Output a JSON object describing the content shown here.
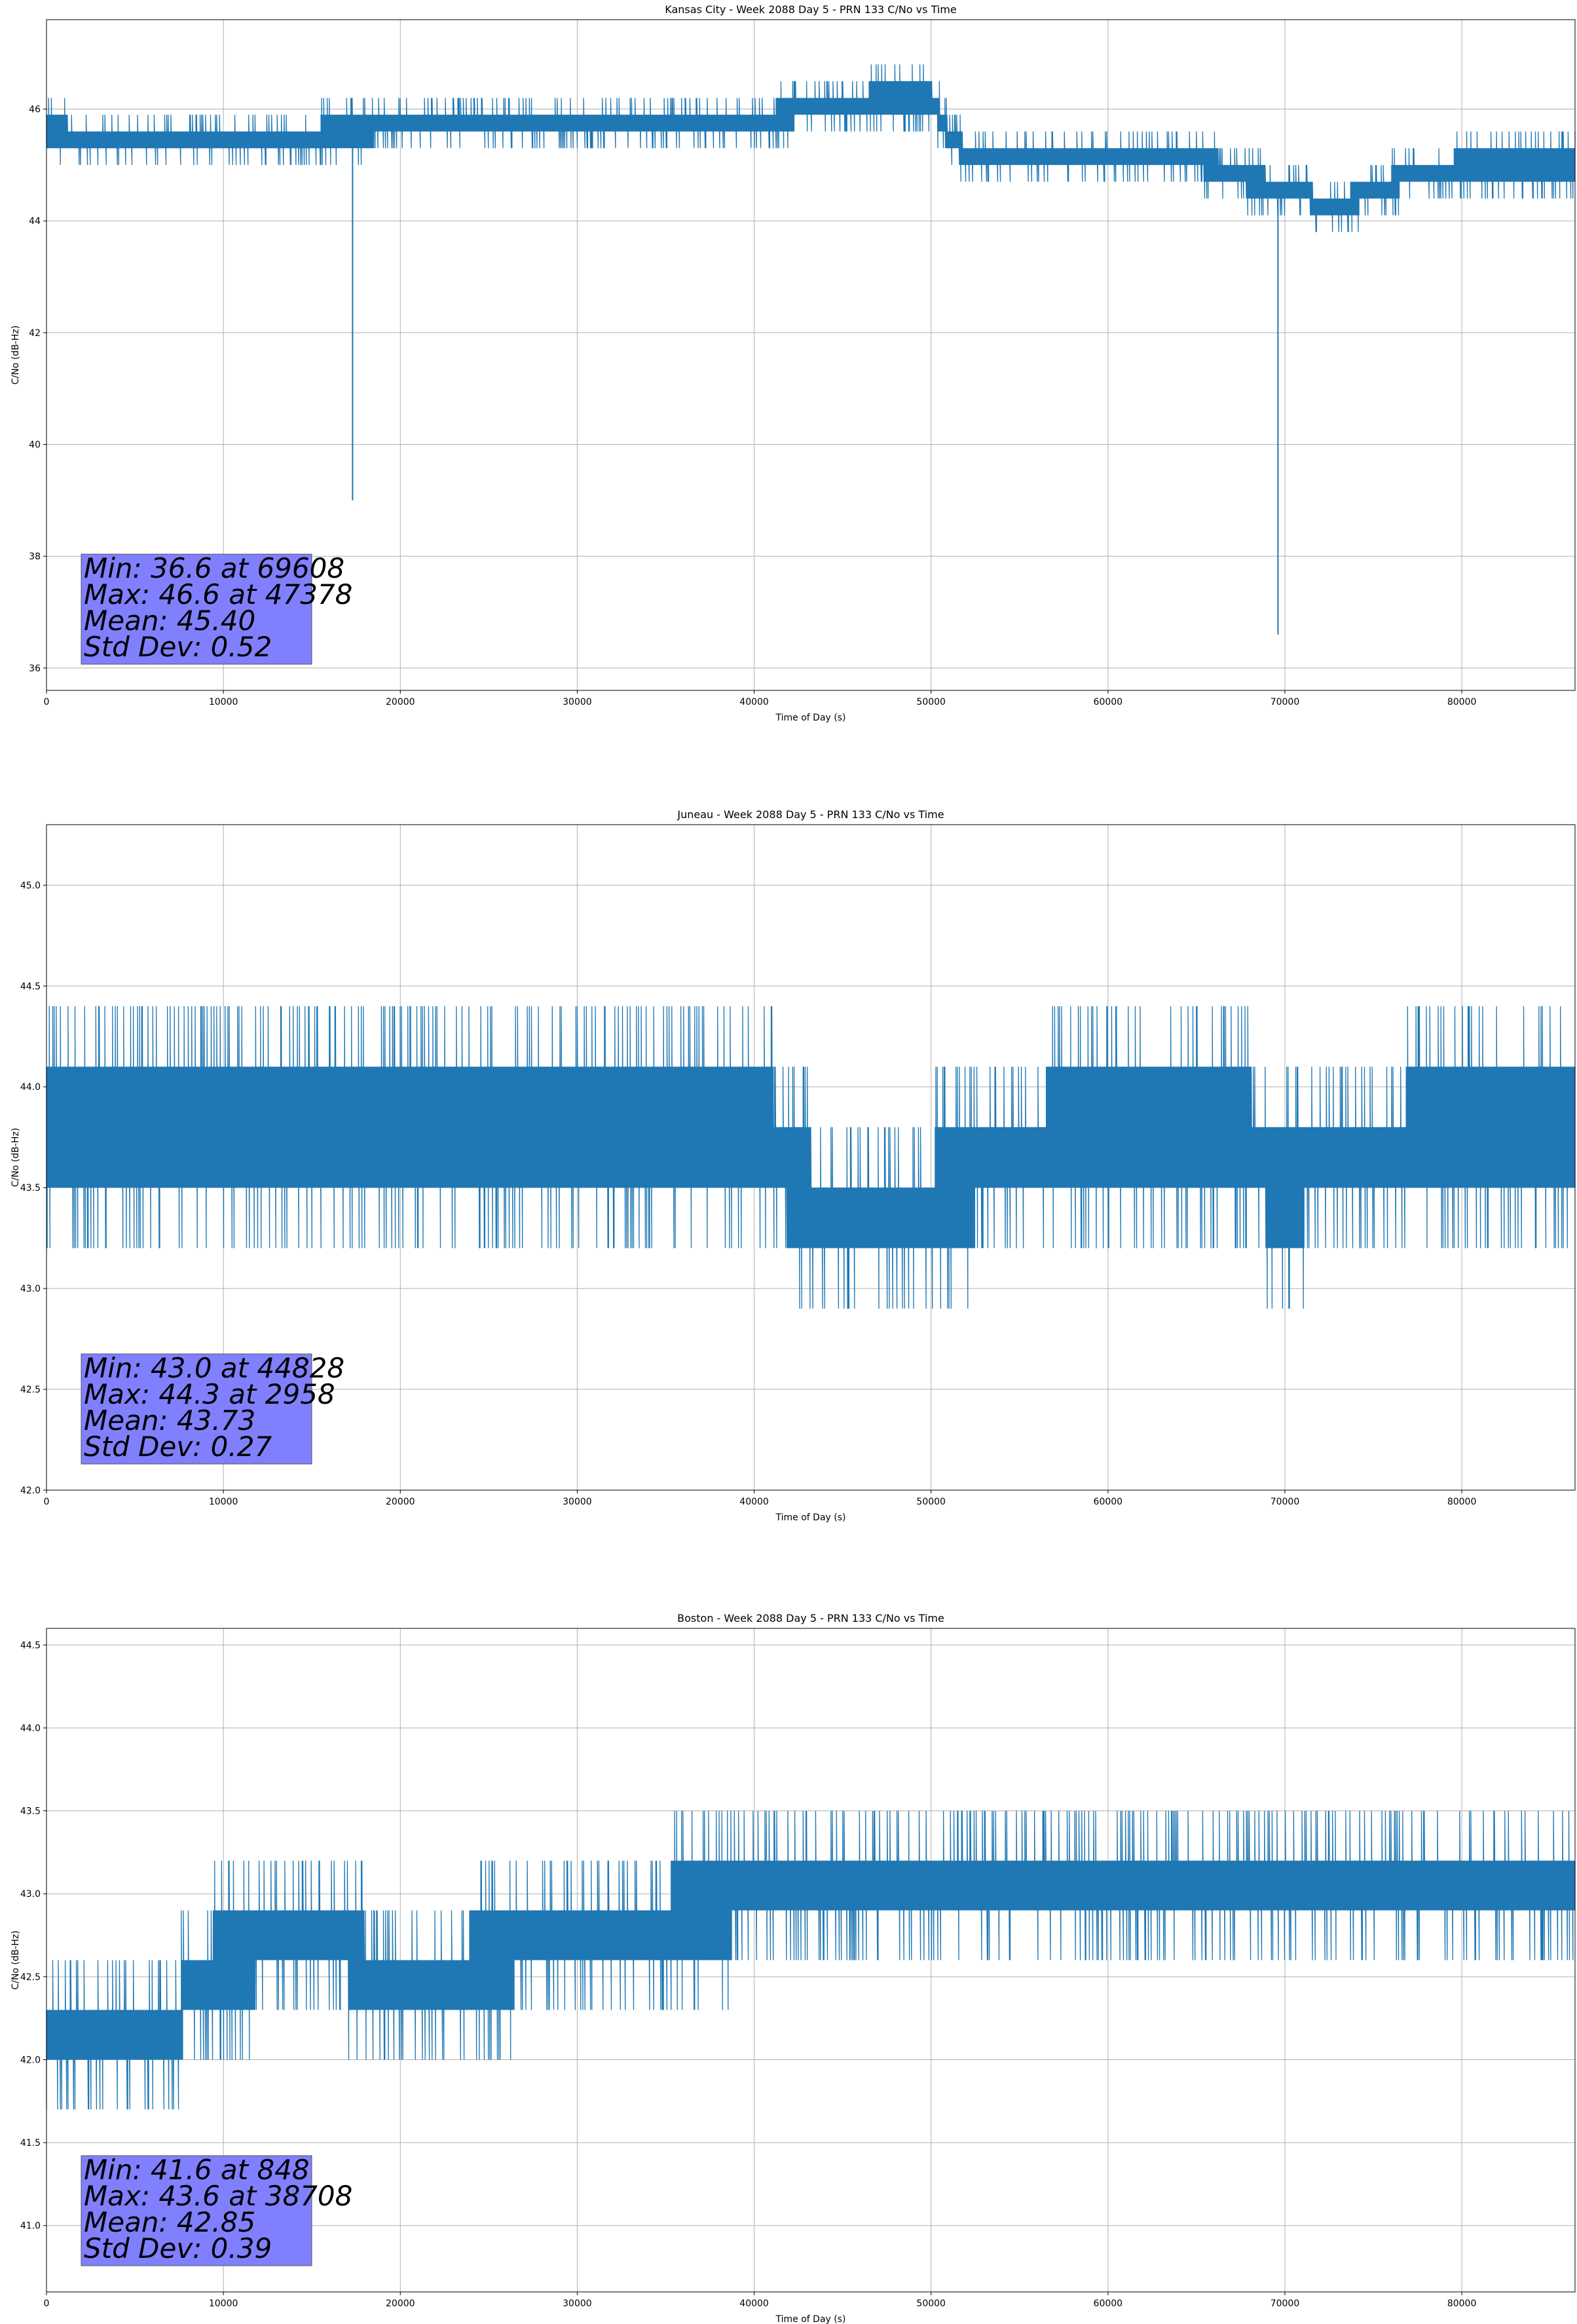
{
  "colors": {
    "line": "#1f77b4",
    "grid": "#b0b0b0",
    "stats_box": "#8080ff",
    "axes": "#000000"
  },
  "chart_data": [
    {
      "type": "line",
      "title": "Kansas City - Week 2088 Day 5 - PRN 133 C/No vs Time",
      "xlabel": "Time of Day (s)",
      "ylabel": "C/No (dB-Hz)",
      "xlim": [
        0,
        86400
      ],
      "ylim": [
        35.6,
        47.6
      ],
      "grid": true,
      "xticks": [
        0,
        10000,
        20000,
        30000,
        40000,
        50000,
        60000,
        70000,
        80000
      ],
      "xtick_labels": [
        "0",
        "10000",
        "20000",
        "30000",
        "40000",
        "50000",
        "60000",
        "70000",
        "80000"
      ],
      "yticks": [
        36,
        38,
        40,
        42,
        44,
        46
      ],
      "ytick_labels": [
        "36",
        "38",
        "40",
        "42",
        "44",
        "46"
      ],
      "series": [
        {
          "step": 0.3,
          "segments": [
            [
              0,
              45.6
            ],
            [
              8000,
              45.4
            ],
            [
              12000,
              45.5
            ],
            [
              22000,
              45.7
            ],
            [
              26000,
              45.8
            ],
            [
              40000,
              45.8
            ],
            [
              47000,
              46.2
            ],
            [
              50000,
              46.2
            ],
            [
              51000,
              45.5
            ],
            [
              52000,
              45.2
            ],
            [
              62000,
              45.2
            ],
            [
              66000,
              45.0
            ],
            [
              68000,
              44.7
            ],
            [
              71000,
              44.6
            ],
            [
              72000,
              44.2
            ],
            [
              74000,
              44.4
            ],
            [
              77000,
              44.8
            ],
            [
              80000,
              45.0
            ],
            [
              86400,
              45.0
            ]
          ],
          "spikes": [
            [
              17300,
              39.0
            ],
            [
              69608,
              36.6
            ]
          ]
        }
      ],
      "stats": [
        "Min: 36.6 at 69608",
        "Max: 46.6 at 47378",
        "Mean: 45.40",
        "Std Dev: 0.52"
      ]
    },
    {
      "type": "line",
      "title": "Juneau - Week 2088 Day 5 - PRN 133 C/No vs Time",
      "xlabel": "Time of Day (s)",
      "ylabel": "C/No (dB-Hz)",
      "xlim": [
        0,
        86400
      ],
      "ylim": [
        42.0,
        45.3
      ],
      "grid": true,
      "xticks": [
        0,
        10000,
        20000,
        30000,
        40000,
        50000,
        60000,
        70000,
        80000
      ],
      "xtick_labels": [
        "0",
        "10000",
        "20000",
        "30000",
        "40000",
        "50000",
        "60000",
        "70000",
        "80000"
      ],
      "yticks": [
        42.0,
        42.5,
        43.0,
        43.5,
        44.0,
        44.5,
        45.0
      ],
      "ytick_labels": [
        "42.0",
        "42.5",
        "43.0",
        "43.5",
        "44.0",
        "44.5",
        "45.0"
      ],
      "series": [
        {
          "step": 0.3,
          "segments": [
            [
              0,
              43.8
            ],
            [
              20000,
              43.8
            ],
            [
              41000,
              43.8
            ],
            [
              42000,
              43.5
            ],
            [
              46000,
              43.4
            ],
            [
              52000,
              43.5
            ],
            [
              57000,
              43.8
            ],
            [
              68000,
              43.8
            ],
            [
              69000,
              43.5
            ],
            [
              76000,
              43.6
            ],
            [
              77000,
              43.8
            ],
            [
              86400,
              43.8
            ]
          ],
          "spikes": []
        }
      ],
      "stats": [
        "Min: 43.0 at 44828",
        "Max: 44.3 at 2958",
        "Mean: 43.73",
        "Std Dev: 0.27"
      ]
    },
    {
      "type": "line",
      "title": "Boston - Week 2088 Day 5 - PRN 133 C/No vs Time",
      "xlabel": "Time of Day (s)",
      "ylabel": "C/No (dB-Hz)",
      "xlim": [
        0,
        86400
      ],
      "ylim": [
        40.6,
        44.6
      ],
      "grid": true,
      "xticks": [
        0,
        10000,
        20000,
        30000,
        40000,
        50000,
        60000,
        70000,
        80000
      ],
      "xtick_labels": [
        "0",
        "10000",
        "20000",
        "30000",
        "40000",
        "50000",
        "60000",
        "70000",
        "80000"
      ],
      "yticks": [
        41.0,
        41.5,
        42.0,
        42.5,
        43.0,
        43.5,
        44.0,
        44.5
      ],
      "ytick_labels": [
        "41.0",
        "41.5",
        "42.0",
        "42.5",
        "43.0",
        "43.5",
        "44.0",
        "44.5"
      ],
      "series": [
        {
          "step": 0.3,
          "segments": [
            [
              0,
              42.1
            ],
            [
              7500,
              42.2
            ],
            [
              8000,
              42.5
            ],
            [
              10000,
              42.6
            ],
            [
              16000,
              42.7
            ],
            [
              19000,
              42.5
            ],
            [
              26000,
              42.6
            ],
            [
              29000,
              42.8
            ],
            [
              38000,
              42.9
            ],
            [
              43000,
              43.1
            ],
            [
              86400,
              43.0
            ]
          ],
          "spikes": []
        }
      ],
      "stats": [
        "Min: 41.6 at 848",
        "Max: 43.6 at 38708",
        "Mean: 42.85",
        "Std Dev: 0.39"
      ]
    }
  ]
}
